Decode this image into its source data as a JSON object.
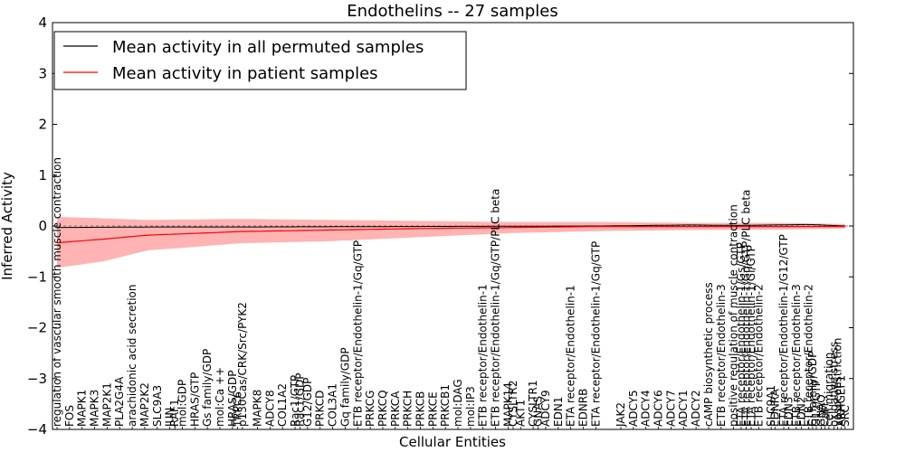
{
  "chart_data": {
    "type": "line",
    "title": "Endothelins -- 27 samples",
    "xlabel": "Cellular Entities",
    "ylabel": "Inferred Activity",
    "ylim": [
      -4,
      4
    ],
    "yticks": [
      -4,
      -3,
      -2,
      -1,
      0,
      1,
      2,
      3,
      4
    ],
    "legend_position": "top-left",
    "series": [
      {
        "name": "Mean activity in all permuted samples",
        "color": "#000000"
      },
      {
        "name": "Mean activity in patient samples",
        "color": "#ff0000",
        "band_color": "#ff8080"
      }
    ],
    "n_points": 88,
    "permuted_mean": [
      [
        0,
        -0.03
      ],
      [
        10,
        -0.02
      ],
      [
        20,
        -0.02
      ],
      [
        40,
        -0.01
      ],
      [
        60,
        0
      ],
      [
        70,
        0.02
      ],
      [
        75,
        0.01
      ],
      [
        83,
        0.03
      ],
      [
        87,
        0
      ]
    ],
    "patient_mean": [
      [
        0,
        -0.33
      ],
      [
        5,
        -0.26
      ],
      [
        10,
        -0.18
      ],
      [
        16,
        -0.14
      ],
      [
        20,
        -0.11
      ],
      [
        30,
        -0.08
      ],
      [
        40,
        -0.05
      ],
      [
        50,
        -0.03
      ],
      [
        60,
        -0.01
      ],
      [
        70,
        -0.01
      ],
      [
        80,
        -0.01
      ],
      [
        87,
        -0.01
      ]
    ],
    "band_upper": [
      [
        0,
        0.18
      ],
      [
        10,
        0.12
      ],
      [
        20,
        0.14
      ],
      [
        30,
        0.12
      ],
      [
        40,
        0.1
      ],
      [
        50,
        0.08
      ],
      [
        60,
        0.08
      ],
      [
        70,
        0.06
      ],
      [
        80,
        0.06
      ],
      [
        87,
        0.04
      ]
    ],
    "band_lower": [
      [
        0,
        -0.82
      ],
      [
        5,
        -0.7
      ],
      [
        10,
        -0.48
      ],
      [
        16,
        -0.4
      ],
      [
        20,
        -0.34
      ],
      [
        30,
        -0.3
      ],
      [
        40,
        -0.22
      ],
      [
        50,
        -0.14
      ],
      [
        60,
        -0.1
      ],
      [
        70,
        -0.08
      ],
      [
        80,
        -0.07
      ],
      [
        87,
        -0.05
      ]
    ],
    "categories": [
      {
        "i": 0,
        "label": "regulation of vascular smooth muscle contraction"
      },
      {
        "i": 1,
        "label": "FOS"
      },
      {
        "i": 2,
        "label": "MAPK1"
      },
      {
        "i": 3,
        "label": "MAPK3"
      },
      {
        "i": 4,
        "label": "MAP2K1"
      },
      {
        "i": 5,
        "label": "PLA2G4A"
      },
      {
        "i": 6,
        "label": "arachidonic acid secretion"
      },
      {
        "i": 7,
        "label": "MAP2K2"
      },
      {
        "i": 8,
        "label": "SLC9A3"
      },
      {
        "i": 9,
        "label": "JUN"
      },
      {
        "i": 9.4,
        "label": "RAF1"
      },
      {
        "i": 10,
        "label": "mol:GDP"
      },
      {
        "i": 11,
        "label": "HRAS/GTP"
      },
      {
        "i": 12,
        "label": "Gs family/GDP"
      },
      {
        "i": 13,
        "label": "mol:Ca ++"
      },
      {
        "i": 14,
        "label": "HRAS/GDP"
      },
      {
        "i": 14.4,
        "label": "TRPC6"
      },
      {
        "i": 14.8,
        "label": "p130Cas/CRK/Src/PYK2"
      },
      {
        "i": 16,
        "label": "MAPK8"
      },
      {
        "i": 17,
        "label": "ADCY8"
      },
      {
        "i": 18,
        "label": "COL1A2"
      },
      {
        "i": 19,
        "label": "Rac1/GTP"
      },
      {
        "i": 19.4,
        "label": "Rac1/GDP"
      },
      {
        "i": 20,
        "label": "G12/GDP"
      },
      {
        "i": 21,
        "label": "PRKCD"
      },
      {
        "i": 22,
        "label": "COL3A1"
      },
      {
        "i": 23,
        "label": "Gq family/GDP"
      },
      {
        "i": 24,
        "label": "ETB receptor/Endothelin-1/Gq/GTP"
      },
      {
        "i": 25,
        "label": "PRKCG"
      },
      {
        "i": 26,
        "label": "PRKCQ"
      },
      {
        "i": 27,
        "label": "PRKCA"
      },
      {
        "i": 28,
        "label": "PRKCH"
      },
      {
        "i": 29,
        "label": "PRKCB"
      },
      {
        "i": 30,
        "label": "PRKCE"
      },
      {
        "i": 31,
        "label": "PRKCB1"
      },
      {
        "i": 32,
        "label": "mol:DAG"
      },
      {
        "i": 33,
        "label": "mol:IP3"
      },
      {
        "i": 34,
        "label": "ETB receptor/Endothelin-1"
      },
      {
        "i": 35,
        "label": "ETB receptor/Endothelin-1/Gq/GTP/PLC beta"
      },
      {
        "i": 36,
        "label": "MAPK14"
      },
      {
        "i": 36.4,
        "label": "CYSLTR2"
      },
      {
        "i": 37,
        "label": "AKT1"
      },
      {
        "i": 38,
        "label": "CYSLTR1"
      },
      {
        "i": 38.4,
        "label": "GNAS"
      },
      {
        "i": 39,
        "label": "ADCY9"
      },
      {
        "i": 40,
        "label": "EDN1"
      },
      {
        "i": 41,
        "label": "ETA receptor/Endothelin-1"
      },
      {
        "i": 42,
        "label": "EDNRB"
      },
      {
        "i": 43,
        "label": "ETA receptor/Endothelin-1/Gq/GTP"
      },
      {
        "i": 45,
        "label": "JAK2"
      },
      {
        "i": 46,
        "label": "ADCY5"
      },
      {
        "i": 47,
        "label": "ADCY4"
      },
      {
        "i": 48,
        "label": "ADCY6"
      },
      {
        "i": 49,
        "label": "ADCY7"
      },
      {
        "i": 50,
        "label": "ADCY1"
      },
      {
        "i": 51,
        "label": "ADCY2"
      },
      {
        "i": 52,
        "label": "cAMP biosynthetic process"
      },
      {
        "i": 53,
        "label": "ETB receptor/Endothelin-3"
      },
      {
        "i": 54,
        "label": "positive regulation of muscle contraction"
      },
      {
        "i": 54.6,
        "label": "ETA receptor/Endothelin-1/Gs/GTP"
      },
      {
        "i": 55,
        "label": "ETA receptor/Endothelin-1/Gq/GTP/PLC beta"
      },
      {
        "i": 55.4,
        "label": "ETA receptor/Endothelin-1/Gi/GTP"
      },
      {
        "i": 56,
        "label": "ETB receptor/Endothelin-2"
      },
      {
        "i": 57,
        "label": "SLC9A1"
      },
      {
        "i": 57.3,
        "label": "EDNRA"
      },
      {
        "i": 58,
        "label": "ETA receptor/Endothelin-1/G12/GTP"
      },
      {
        "i": 58.4,
        "label": "EDN3"
      },
      {
        "i": 59,
        "label": "ETB receptor/Endothelin-3"
      },
      {
        "i": 59.4,
        "label": "EDN2"
      },
      {
        "i": 60,
        "label": "ETB receptor/Endothelin-2"
      },
      {
        "i": 60.3,
        "label": "Gi family/GDP"
      },
      {
        "i": 60.6,
        "label": "G12/GTP"
      },
      {
        "i": 61,
        "label": "GNAQ"
      },
      {
        "i": 61.3,
        "label": "CaM"
      },
      {
        "i": 61.6,
        "label": "cell migration"
      },
      {
        "i": 62,
        "label": "oxidative stress"
      },
      {
        "i": 62.3,
        "label": "vasoconstriction"
      },
      {
        "i": 62.6,
        "label": "ARHGEF1"
      },
      {
        "i": 62.9,
        "label": "SRC"
      }
    ]
  }
}
